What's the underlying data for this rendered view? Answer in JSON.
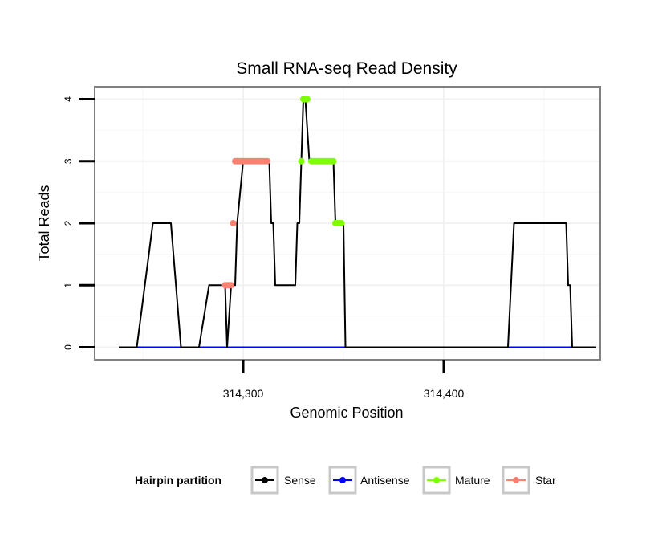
{
  "chart_data": {
    "type": "line",
    "title": "Small RNA-seq Read Density",
    "xlabel": "Genomic Position",
    "ylabel": "Total Reads",
    "xlim": [
      314226,
      314478
    ],
    "ylim": [
      -0.2,
      4.2
    ],
    "grid": true,
    "x_ticks": [
      314300,
      314400
    ],
    "x_tick_labels": [
      "314,300",
      "314,400"
    ],
    "y_ticks": [
      0,
      1,
      2,
      3,
      4
    ],
    "y_tick_labels": [
      "0",
      "1",
      "2",
      "3",
      "4"
    ],
    "legend": {
      "title": "Hairpin partition",
      "position": "bottom",
      "entries": [
        "Sense",
        "Antisense",
        "Mature",
        "Star"
      ]
    },
    "colors": {
      "Sense": "#000000",
      "Antisense": "#0000ff",
      "Mature": "#7fff00",
      "Star": "#fa8072"
    },
    "series": [
      {
        "name": "Sense",
        "kind": "line",
        "x": [
          314238,
          314247,
          314255,
          314264,
          314269,
          314278,
          314283,
          314288,
          314290,
          314291,
          314292,
          314294,
          314296,
          314297,
          314300,
          314304,
          314312,
          314313,
          314314,
          314315,
          314316,
          314318,
          314326,
          314327,
          314328,
          314329,
          314330,
          314331,
          314333,
          314334,
          314335,
          314336,
          314345,
          314346,
          314347,
          314348,
          314350,
          314351,
          314352,
          314353,
          314354,
          314365,
          314432,
          314435,
          314444,
          314459,
          314461,
          314462,
          314463,
          314464,
          314466,
          314476
        ],
        "y": [
          0,
          0,
          2,
          2,
          0,
          0,
          1,
          1,
          1,
          1,
          0,
          1,
          1,
          2,
          3,
          3,
          3,
          3,
          2,
          2,
          1,
          1,
          1,
          2,
          2,
          3,
          4,
          4,
          3,
          3,
          3,
          3,
          3,
          2,
          2,
          2,
          2,
          0,
          0,
          0,
          0,
          0,
          0,
          2,
          2,
          2,
          2,
          1,
          1,
          0,
          0,
          0
        ]
      },
      {
        "name": "Antisense",
        "kind": "line",
        "x": [
          314246,
          314467
        ],
        "y": [
          0,
          0
        ]
      },
      {
        "name": "Mature",
        "kind": "points",
        "x": [
          314329,
          314330,
          314330.5,
          314331,
          314331.5,
          314332,
          314334,
          314335,
          314336,
          314337,
          314338,
          314339,
          314340,
          314341,
          314342,
          314343,
          314344,
          314345,
          314346,
          314347,
          314348,
          314349
        ],
        "y": [
          3,
          4,
          4,
          4,
          4,
          4,
          3,
          3,
          3,
          3,
          3,
          3,
          3,
          3,
          3,
          3,
          3,
          3,
          2,
          2,
          2,
          2
        ]
      },
      {
        "name": "Star",
        "kind": "points",
        "x": [
          314291,
          314292,
          314293,
          314294,
          314295,
          314296,
          314297,
          314298,
          314299,
          314300,
          314301,
          314302,
          314303,
          314304,
          314305,
          314306,
          314307,
          314308,
          314309,
          314310,
          314311,
          314312
        ],
        "y": [
          1,
          1,
          1,
          1,
          2,
          3,
          3,
          3,
          3,
          3,
          3,
          3,
          3,
          3,
          3,
          3,
          3,
          3,
          3,
          3,
          3,
          3
        ]
      }
    ]
  }
}
